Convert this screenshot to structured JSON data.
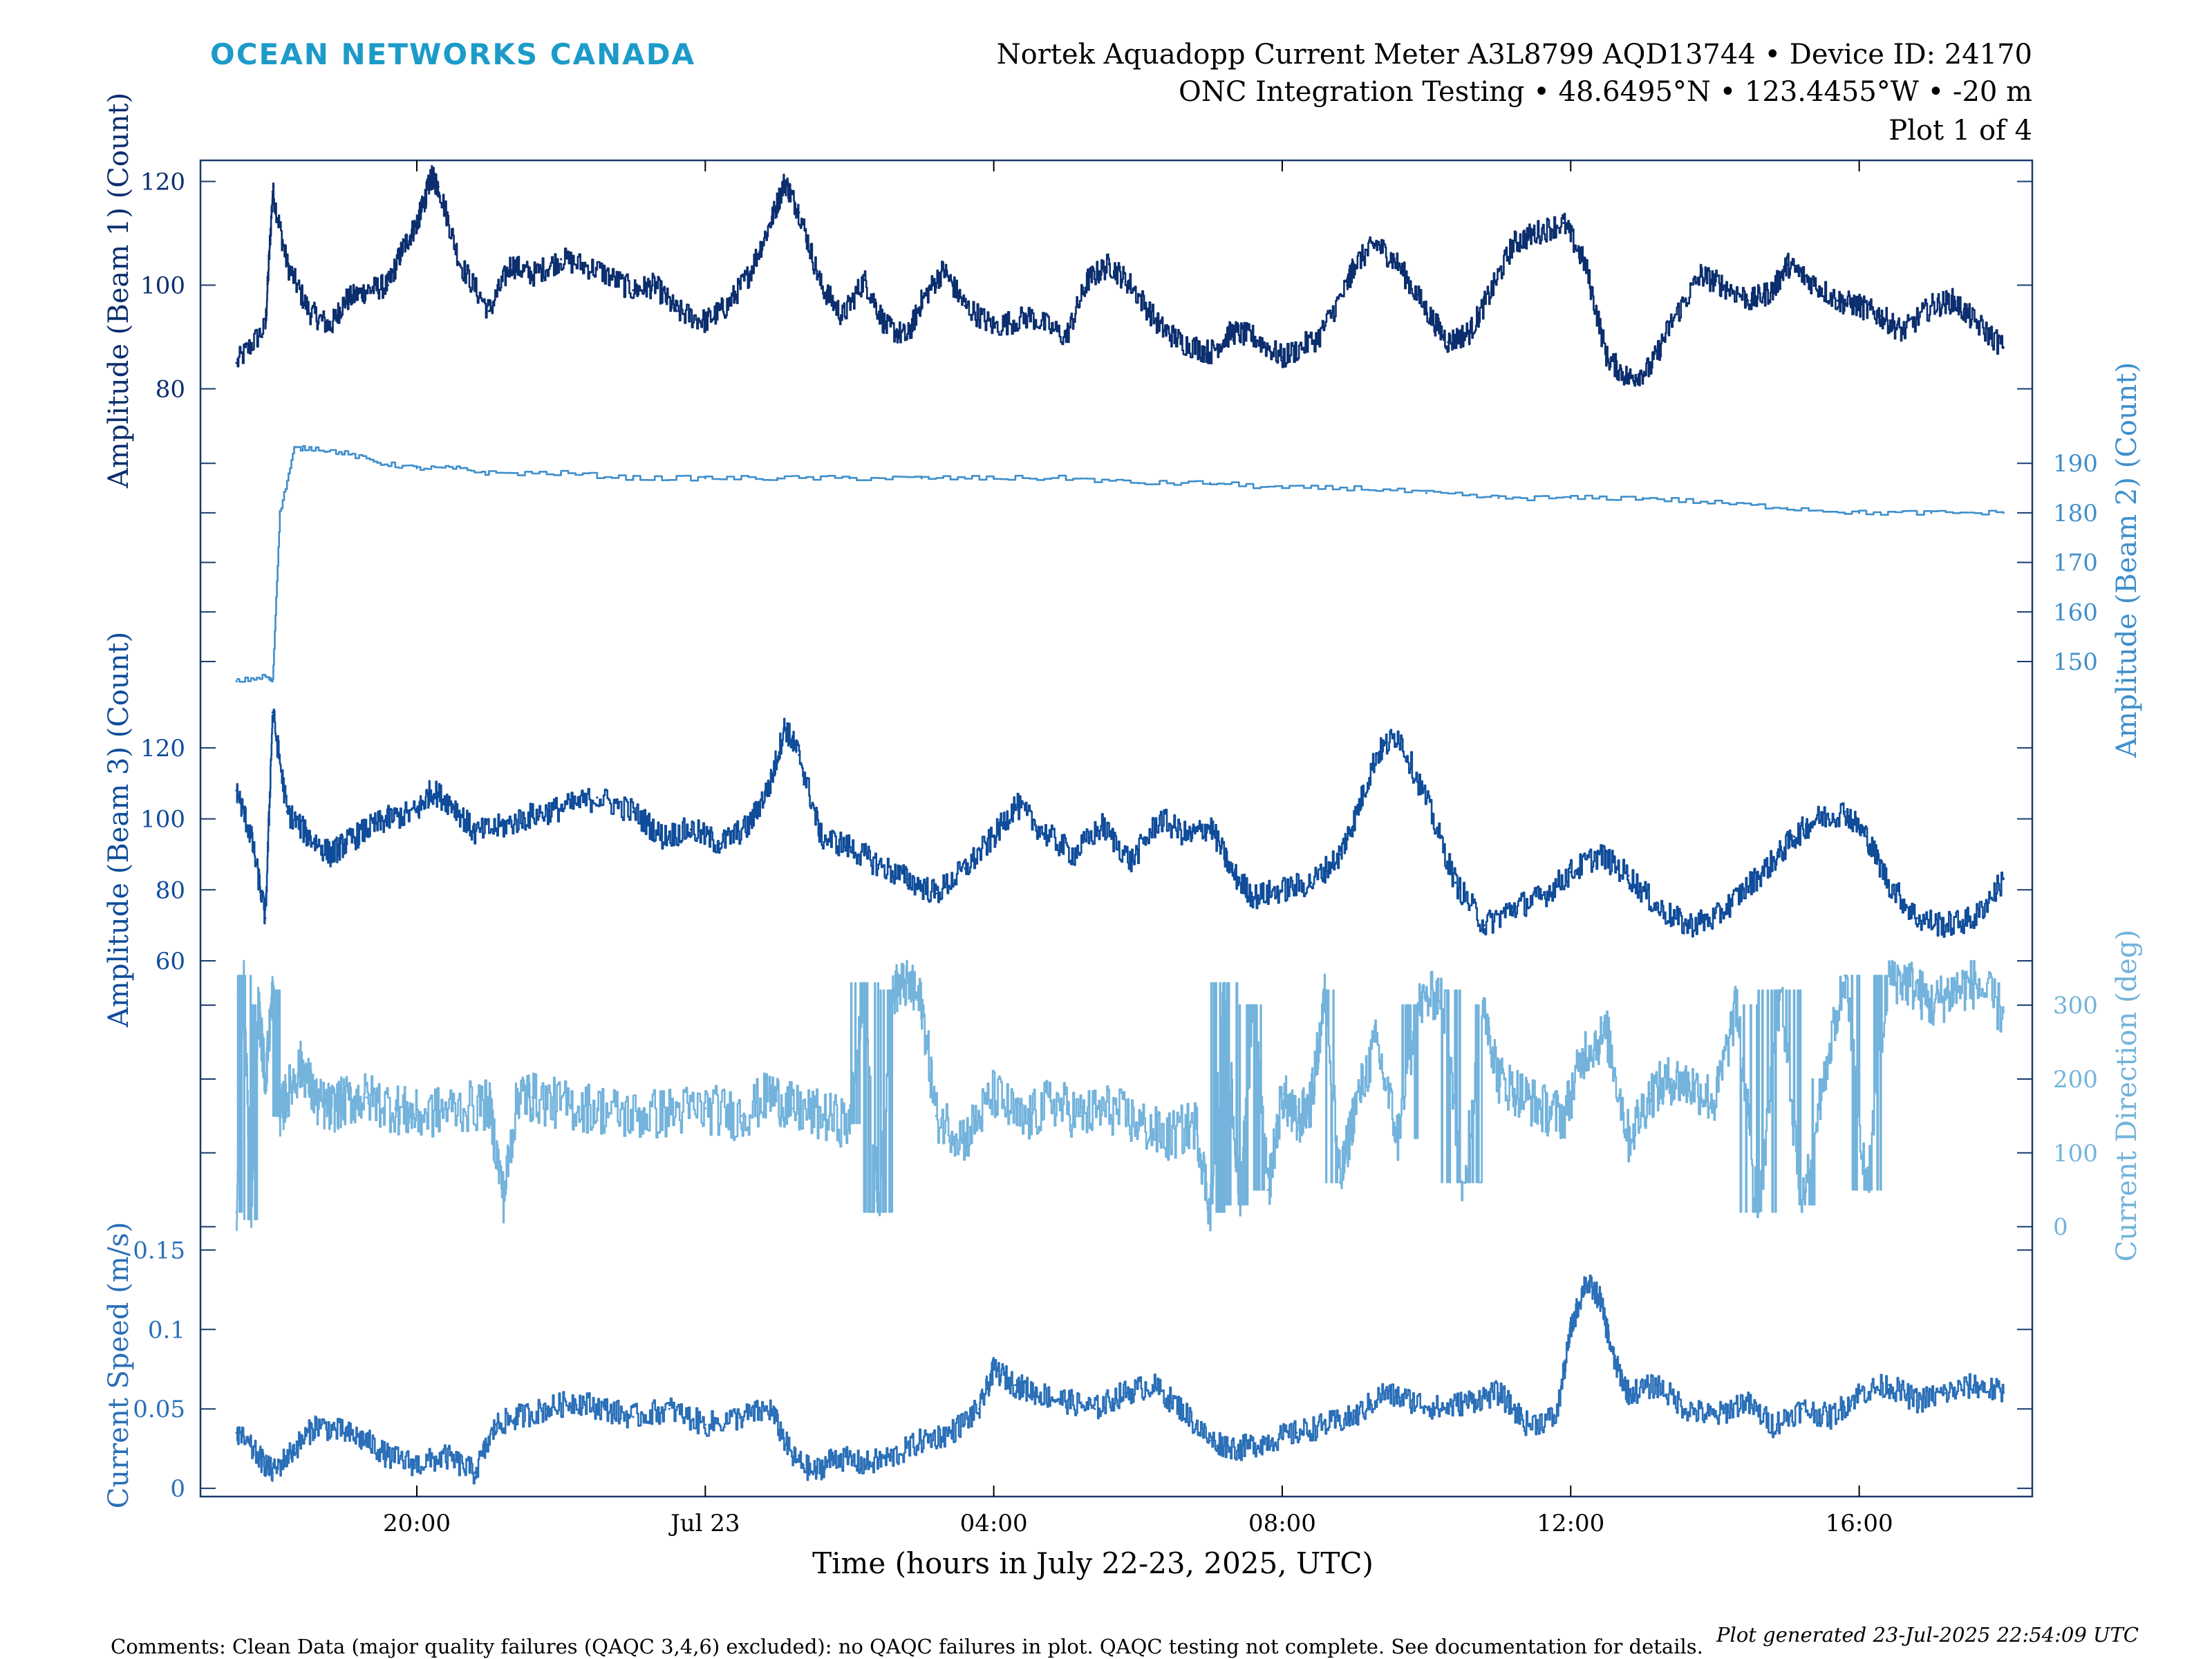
{
  "header": {
    "brand": "OCEAN NETWORKS CANADA",
    "title_line1": "Nortek Aquadopp Current Meter A3L8799 AQD13744 • Device ID: 24170",
    "title_line2": "ONC Integration Testing • 48.6495°N • 123.4455°W • -20 m",
    "title_line3": "Plot 1 of 4"
  },
  "footer": {
    "comments": "Comments: Clean Data (major quality failures (QAQC 3,4,6) excluded): no QAQC failures in plot. QAQC testing not complete. See documentation for details.",
    "generated": "Plot generated 23-Jul-2025 22:54:09 UTC"
  },
  "colors": {
    "brand": "#1c9bc9",
    "axes": "#1a3a6c",
    "beam1": "#0b2e6e",
    "beam2": "#3f8fcc",
    "beam3": "#0f4c9a",
    "direction": "#73b3dc",
    "speed": "#2a6fb8"
  },
  "chart_data": {
    "type": "line",
    "xlabel": "Time (hours in July 22-23, 2025, UTC)",
    "x_tick_labels": [
      "20:00",
      "Jul 23",
      "04:00",
      "08:00",
      "12:00",
      "16:00"
    ],
    "x_tick_hours": [
      20,
      24,
      28,
      32,
      36,
      40
    ],
    "xlim_hours": [
      17,
      42.4
    ],
    "x_units": "hours since 2025-07-22 00:00 UTC",
    "grid": false,
    "series": [
      {
        "name": "Amplitude (Beam 1) (Count)",
        "axis": "left",
        "ylabel": "Amplitude (Beam 1) (Count)",
        "ticks": [
          80,
          100,
          120
        ],
        "tick_labels": [
          "80",
          "100",
          "120"
        ],
        "panel_range": [
          75,
          123
        ],
        "x": [
          17.5,
          17.9,
          18.0,
          18.2,
          18.5,
          18.8,
          19.0,
          19.3,
          19.6,
          19.8,
          20.0,
          20.1,
          20.2,
          20.3,
          20.6,
          21.0,
          21.3,
          21.6,
          22.0,
          22.5,
          23.0,
          23.3,
          23.6,
          24.0,
          24.3,
          24.6,
          24.9,
          25.1,
          25.3,
          25.6,
          25.9,
          26.2,
          26.5,
          26.8,
          27.0,
          27.3,
          27.6,
          28.0,
          28.5,
          29.0,
          29.3,
          29.6,
          29.9,
          30.3,
          30.6,
          31.0,
          31.3,
          31.6,
          32.0,
          32.5,
          32.9,
          33.0,
          33.3,
          33.6,
          34.0,
          34.3,
          34.6,
          34.9,
          35.2,
          35.5,
          35.9,
          36.2,
          36.5,
          36.8,
          37.1,
          37.4,
          37.8,
          38.1,
          38.5,
          38.8,
          39.0,
          39.3,
          39.7,
          40.0,
          40.3,
          40.6,
          41.0,
          41.3,
          41.6,
          42.0
        ],
        "y": [
          85,
          92,
          118,
          104,
          95,
          92,
          97,
          99,
          100,
          107,
          112,
          116,
          121,
          119,
          104,
          95,
          104,
          102,
          105,
          103,
          99,
          100,
          95,
          93,
          96,
          102,
          112,
          120,
          114,
          100,
          94,
          101,
          92,
          90,
          97,
          103,
          96,
          92,
          94,
          90,
          101,
          104,
          100,
          92,
          89,
          87,
          91,
          90,
          86,
          90,
          100,
          104,
          108,
          104,
          95,
          89,
          91,
          99,
          108,
          110,
          112,
          104,
          86,
          82,
          84,
          93,
          102,
          100,
          97,
          99,
          104,
          101,
          97,
          96,
          94,
          91,
          96,
          97,
          93,
          88
        ]
      },
      {
        "name": "Amplitude (Beam 2) (Count)",
        "axis": "right",
        "ylabel": "Amplitude (Beam 2) (Count)",
        "ticks": [
          150,
          160,
          170,
          180,
          190
        ],
        "tick_labels": [
          "150",
          "160",
          "170",
          "180",
          "190"
        ],
        "panel_range": [
          144,
          197
        ],
        "x": [
          17.5,
          17.9,
          18.0,
          18.1,
          18.3,
          18.6,
          19.0,
          19.5,
          20.0,
          20.5,
          21.0,
          22.0,
          23.0,
          24.0,
          25.0,
          26.0,
          27.0,
          28.0,
          29.0,
          30.0,
          31.0,
          32.0,
          33.0,
          34.0,
          35.0,
          36.0,
          37.0,
          38.0,
          39.0,
          40.0,
          41.0,
          42.0
        ],
        "y": [
          146,
          147,
          146,
          180,
          193,
          193,
          192,
          190,
          189,
          189,
          188,
          188,
          187,
          187,
          187,
          187,
          187,
          187,
          187,
          186,
          186,
          185,
          185,
          184,
          183,
          183,
          183,
          182,
          181,
          180,
          180,
          180
        ]
      },
      {
        "name": "Amplitude (Beam 3) (Count)",
        "axis": "left",
        "ylabel": "Amplitude (Beam 3) (Count)",
        "ticks": [
          60,
          80,
          100,
          120
        ],
        "tick_labels": [
          "60",
          "80",
          "100",
          "120"
        ],
        "panel_range": [
          60,
          134
        ],
        "x": [
          17.5,
          17.7,
          17.9,
          18.0,
          18.2,
          18.5,
          18.8,
          19.0,
          19.3,
          19.6,
          20.0,
          20.2,
          20.5,
          20.8,
          21.2,
          21.6,
          22.0,
          22.5,
          23.0,
          23.4,
          23.8,
          24.2,
          24.6,
          24.9,
          25.1,
          25.3,
          25.6,
          26.0,
          26.4,
          26.8,
          27.2,
          27.6,
          28.0,
          28.3,
          28.7,
          29.1,
          29.5,
          29.9,
          30.3,
          30.7,
          31.0,
          31.3,
          31.6,
          32.0,
          32.4,
          32.8,
          33.0,
          33.3,
          33.6,
          34.0,
          34.4,
          34.8,
          35.2,
          35.6,
          36.0,
          36.4,
          36.8,
          37.2,
          37.6,
          38.0,
          38.4,
          38.8,
          39.1,
          39.4,
          39.8,
          40.1,
          40.4,
          40.8,
          41.2,
          41.6,
          42.0
        ],
        "y": [
          108,
          95,
          72,
          130,
          102,
          95,
          90,
          93,
          97,
          100,
          102,
          108,
          104,
          96,
          98,
          101,
          103,
          106,
          102,
          95,
          97,
          93,
          98,
          110,
          126,
          118,
          95,
          92,
          87,
          83,
          79,
          86,
          95,
          104,
          96,
          90,
          98,
          88,
          100,
          95,
          98,
          85,
          78,
          80,
          82,
          90,
          100,
          118,
          124,
          105,
          82,
          70,
          75,
          78,
          85,
          90,
          84,
          75,
          70,
          72,
          80,
          88,
          95,
          100,
          102,
          95,
          82,
          72,
          70,
          72,
          83
        ]
      },
      {
        "name": "Current Direction (deg)",
        "axis": "right",
        "ylabel": "Current Direction (deg)",
        "ticks": [
          0,
          100,
          200,
          300
        ],
        "tick_labels": [
          "0",
          "100",
          "200",
          "300"
        ],
        "panel_range": [
          -5,
          360
        ],
        "x": [
          17.5,
          17.6,
          17.7,
          17.8,
          17.9,
          18.0,
          18.1,
          18.2,
          18.4,
          18.6,
          18.8,
          19.0,
          19.3,
          19.7,
          20.0,
          20.5,
          21.0,
          21.2,
          21.4,
          21.6,
          22.0,
          22.5,
          23.0,
          23.5,
          24.0,
          24.5,
          24.9,
          25.2,
          25.6,
          26.0,
          26.2,
          26.4,
          26.6,
          26.8,
          27.0,
          27.2,
          27.6,
          28.0,
          28.4,
          28.8,
          29.2,
          29.6,
          30.0,
          30.4,
          30.8,
          31.0,
          31.2,
          31.4,
          31.6,
          31.8,
          32.0,
          32.2,
          32.4,
          32.6,
          32.8,
          33.0,
          33.3,
          33.6,
          33.9,
          34.2,
          34.5,
          34.8,
          35.0,
          35.3,
          35.6,
          35.9,
          36.2,
          36.5,
          36.8,
          37.1,
          37.4,
          37.7,
          38.0,
          38.3,
          38.6,
          38.9,
          39.2,
          39.5,
          39.8,
          40.1,
          40.4,
          40.7,
          41.0,
          41.3,
          41.6,
          42.0
        ],
        "y": [
          20,
          340,
          10,
          300,
          200,
          320,
          150,
          180,
          220,
          170,
          160,
          170,
          175,
          160,
          150,
          160,
          165,
          40,
          180,
          175,
          165,
          160,
          150,
          155,
          160,
          150,
          180,
          160,
          150,
          140,
          330,
          20,
          320,
          330,
          300,
          150,
          120,
          180,
          140,
          170,
          150,
          160,
          140,
          120,
          140,
          20,
          330,
          30,
          300,
          50,
          180,
          140,
          170,
          320,
          60,
          160,
          250,
          120,
          300,
          320,
          60,
          300,
          200,
          180,
          160,
          150,
          240,
          260,
          120,
          180,
          200,
          190,
          170,
          300,
          20,
          320,
          30,
          200,
          340,
          50,
          340,
          330,
          300,
          320,
          330,
          290
        ]
      },
      {
        "name": "Current Speed (m/s)",
        "axis": "left",
        "ylabel": "Current Speed (m/s)",
        "ticks": [
          0,
          0.05,
          0.1,
          0.15
        ],
        "tick_labels": [
          "0",
          "0.05",
          "0.1",
          "0.15"
        ],
        "panel_range": [
          -0.003,
          0.158
        ],
        "x": [
          17.5,
          17.8,
          18.0,
          18.3,
          18.6,
          19.0,
          19.3,
          19.6,
          20.0,
          20.4,
          20.8,
          21.1,
          21.4,
          21.8,
          22.2,
          22.6,
          23.0,
          23.5,
          24.0,
          24.5,
          24.9,
          25.2,
          25.5,
          25.8,
          26.2,
          26.6,
          27.0,
          27.4,
          27.8,
          28.0,
          28.3,
          28.6,
          29.0,
          29.4,
          29.8,
          30.2,
          30.6,
          31.0,
          31.4,
          31.8,
          32.2,
          32.6,
          33.0,
          33.4,
          33.8,
          34.2,
          34.6,
          35.0,
          35.4,
          35.8,
          36.0,
          36.2,
          36.4,
          36.6,
          36.8,
          37.2,
          37.6,
          38.0,
          38.4,
          38.8,
          39.2,
          39.6,
          40.0,
          40.4,
          40.8,
          41.2,
          41.6,
          42.0
        ],
        "y": [
          0.035,
          0.02,
          0.01,
          0.025,
          0.04,
          0.035,
          0.03,
          0.02,
          0.015,
          0.02,
          0.01,
          0.04,
          0.045,
          0.05,
          0.055,
          0.05,
          0.045,
          0.05,
          0.04,
          0.045,
          0.05,
          0.02,
          0.01,
          0.02,
          0.015,
          0.02,
          0.03,
          0.035,
          0.05,
          0.075,
          0.065,
          0.06,
          0.055,
          0.05,
          0.06,
          0.065,
          0.05,
          0.03,
          0.025,
          0.03,
          0.035,
          0.04,
          0.045,
          0.06,
          0.055,
          0.05,
          0.055,
          0.06,
          0.04,
          0.045,
          0.1,
          0.13,
          0.12,
          0.08,
          0.06,
          0.065,
          0.05,
          0.045,
          0.055,
          0.04,
          0.05,
          0.045,
          0.06,
          0.065,
          0.055,
          0.06,
          0.065,
          0.06
        ]
      }
    ]
  }
}
